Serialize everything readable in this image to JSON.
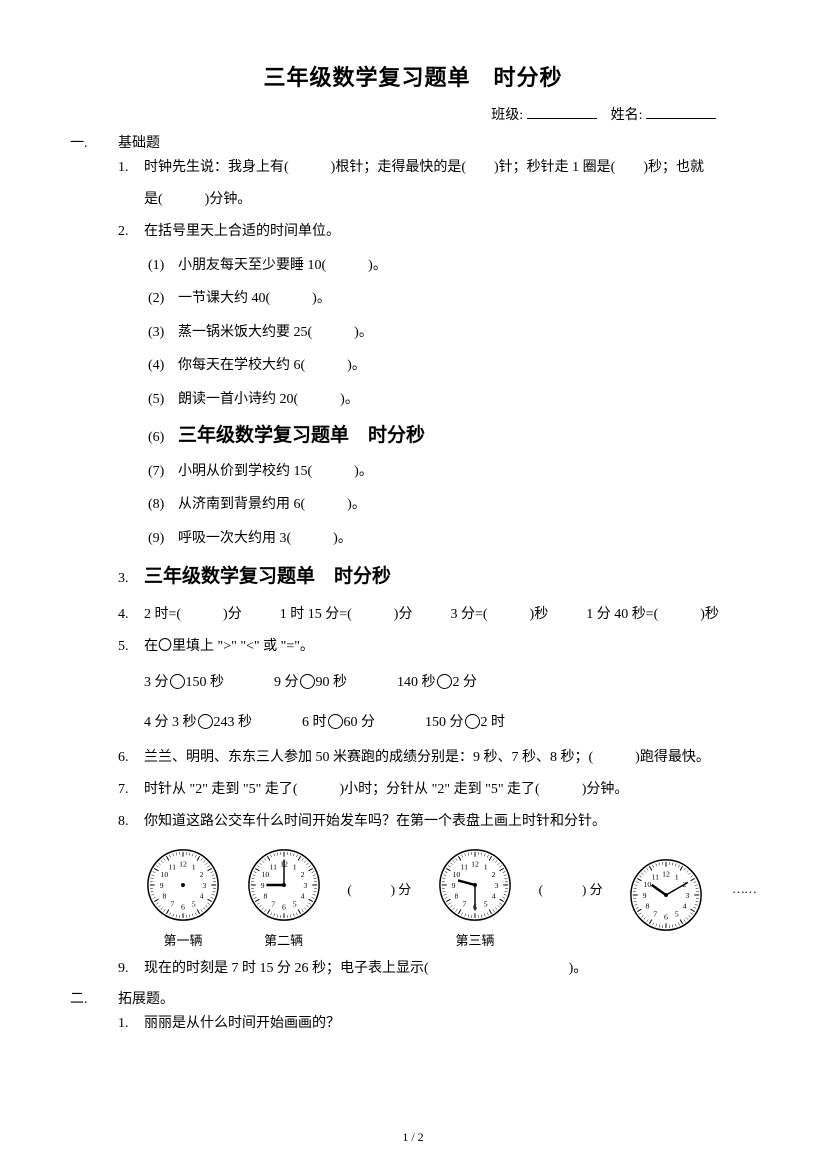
{
  "title": "三年级数学复习题单　时分秒",
  "header": {
    "class_label": "班级:",
    "name_label": "姓名:"
  },
  "sections": {
    "one": {
      "num": "一.",
      "label": "基础题"
    },
    "two": {
      "num": "二.",
      "label": "拓展题。"
    }
  },
  "q1": {
    "num": "1.",
    "text_a": "时钟先生说：我身上有(",
    "text_b": ")根针；走得最快的是(",
    "text_c": ")针；秒针走 1 圈是(",
    "text_d": ")秒；也就",
    "text_e": "是(",
    "text_f": ")分钟。"
  },
  "q2": {
    "num": "2.",
    "intro": "在括号里天上合适的时间单位。",
    "subs": [
      {
        "n": "(1)",
        "t": "小朋友每天至少要睡 10(　　　)。"
      },
      {
        "n": "(2)",
        "t": "一节课大约 40(　　　)。"
      },
      {
        "n": "(3)",
        "t": "蒸一锅米饭大约要 25(　　　)。"
      },
      {
        "n": "(4)",
        "t": "你每天在学校大约 6(　　　)。"
      },
      {
        "n": "(5)",
        "t": "朗读一首小诗约 20(　　　)。"
      },
      {
        "n": "(6)",
        "heading": "三年级数学复习题单　时分秒"
      },
      {
        "n": "(7)",
        "t": "小明从价到学校约 15(　　　)。"
      },
      {
        "n": "(8)",
        "t": "从济南到背景约用 6(　　　)。"
      },
      {
        "n": "(9)",
        "t": "呼吸一次大约用 3(　　　)。"
      }
    ]
  },
  "q3": {
    "num": "3.",
    "heading": "三年级数学复习题单　时分秒"
  },
  "q4": {
    "num": "4.",
    "parts": [
      "2 时=(　　　)分",
      "1 时 15 分=(　　　)分",
      "3 分=(　　　)秒",
      "1 分 40 秒=(　　　)秒"
    ]
  },
  "q5": {
    "num": "5.",
    "intro": "在〇里填上 \">\" \"<\" 或 \"=\"。",
    "row1": [
      "3 分",
      "150 秒",
      "9 分",
      "90 秒",
      "140 秒",
      "2 分"
    ],
    "row2": [
      "4 分 3 秒",
      "243 秒",
      "6 时",
      "60 分",
      "150 分",
      "2 时"
    ]
  },
  "q6": {
    "num": "6.",
    "text": "兰兰、明明、东东三人参加 50 米赛跑的成绩分别是：9 秒、7 秒、8 秒；(　　　)跑得最快。"
  },
  "q7": {
    "num": "7.",
    "text": "时针从 \"2\" 走到 \"5\" 走了(　　　)小时；分针从 \"2\" 走到 \"5\" 走了(　　　)分钟。"
  },
  "q8": {
    "num": "8.",
    "text": "你知道这路公交车什么时间开始发车吗？在第一个表盘上画上时针和分针。",
    "gap_label": "(　　　) 分",
    "clocks": [
      {
        "label": "第一辆",
        "hour": null,
        "minute": null
      },
      {
        "label": "第二辆",
        "hour": 9,
        "minute": 0
      },
      {
        "label": "第三辆",
        "hour": 9,
        "minute": 30
      },
      {
        "label": "",
        "hour": 10,
        "minute": 10
      }
    ],
    "dots": "……"
  },
  "q9": {
    "num": "9.",
    "text": "现在的时刻是 7 时 15 分 26 秒；电子表上显示(　　　　　　　　　　)。"
  },
  "ext_q1": {
    "num": "1.",
    "text": "丽丽是从什么时间开始画画的？"
  },
  "page_footer": "1 / 2",
  "clock_style": {
    "face_stroke": "#000",
    "hand_stroke": "#000",
    "radius": 36,
    "number_fontsize": 8
  }
}
